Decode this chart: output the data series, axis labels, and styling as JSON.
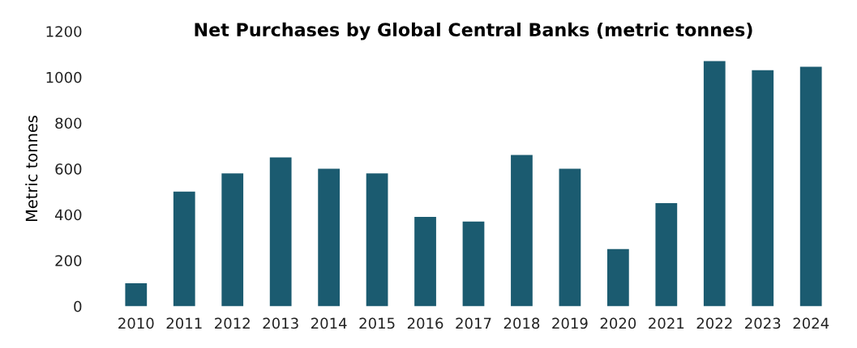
{
  "chart_data": {
    "type": "bar",
    "title": "Net Purchases by Global Central Banks (metric tonnes)",
    "ylabel": "Metric tonnes",
    "categories": [
      "2010",
      "2011",
      "2012",
      "2013",
      "2014",
      "2015",
      "2016",
      "2017",
      "2018",
      "2019",
      "2020",
      "2021",
      "2022",
      "2023",
      "2024"
    ],
    "values": [
      100,
      500,
      580,
      650,
      600,
      580,
      390,
      370,
      660,
      600,
      250,
      450,
      1070,
      1030,
      1045
    ],
    "color": "#1b5b70",
    "ylim": [
      0,
      1200
    ],
    "yticks": [
      0,
      200,
      400,
      600,
      800,
      1000,
      1200
    ],
    "grid": false
  }
}
